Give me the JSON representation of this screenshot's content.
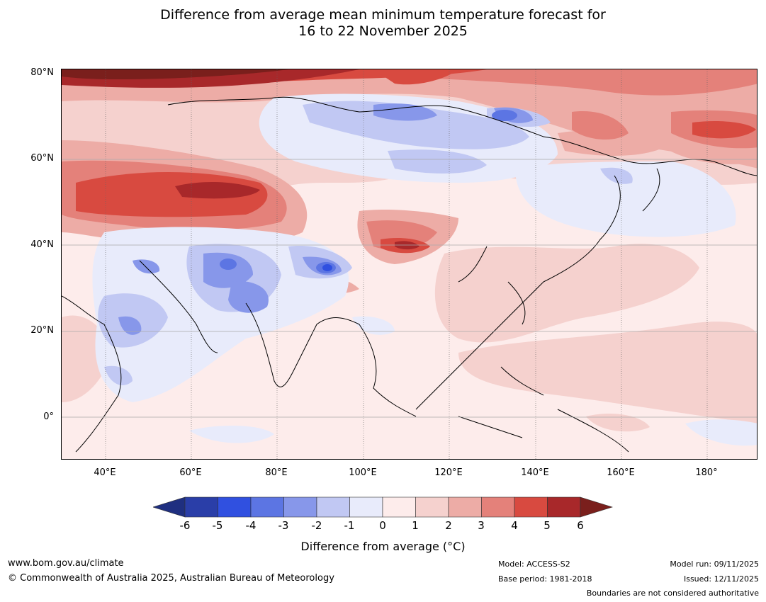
{
  "title": {
    "line1": "Difference from average mean minimum temperature forecast for",
    "line2": "16 to 22 November 2025"
  },
  "map": {
    "lat_labels": [
      "80°N",
      "60°N",
      "40°N",
      "20°N",
      "0°"
    ],
    "lon_labels": [
      "40°E",
      "60°E",
      "80°E",
      "100°E",
      "120°E",
      "140°E",
      "160°E",
      "180°"
    ]
  },
  "colorbar": {
    "ticks": [
      "-6",
      "-5",
      "-4",
      "-3",
      "-2",
      "-1",
      "0",
      "1",
      "2",
      "3",
      "4",
      "5",
      "6"
    ],
    "colors": {
      "below_min": "#1f2f80",
      "m6_m5": "#2a3ea8",
      "m5_m4": "#3050e0",
      "m4_m3": "#5c75e3",
      "m3_m2": "#8797ea",
      "m2_m1": "#c1c8f3",
      "m1_0": "#e8ebfb",
      "0_1": "#fdeceb",
      "1_2": "#f5d1ce",
      "2_3": "#edaca6",
      "3_4": "#e4817a",
      "4_5": "#d84a40",
      "5_6": "#a8282a",
      "above_max": "#7a1f1c"
    },
    "label_prefix": "Difference from average (",
    "label_unit": "°C",
    "label_suffix": ")"
  },
  "footer": {
    "website": "www.bom.gov.au/climate",
    "copyright": "© Commonwealth of Australia 2025, Australian Bureau of Meteorology",
    "model": "Model: ACCESS-S2",
    "base_period": "Base period: 1981-2018",
    "model_run": "Model run: 09/11/2025",
    "issued": "Issued: 12/11/2025",
    "disclaimer": "Boundaries are not considered authoritative"
  }
}
